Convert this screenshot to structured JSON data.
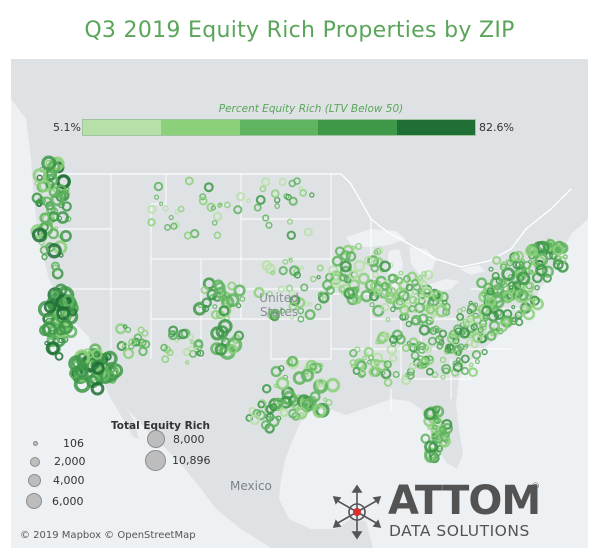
{
  "title": "Q3 2019 Equity Rich Properties by ZIP",
  "legend": {
    "title": "Percent Equity Rich (LTV Below 50)",
    "min_label": "5.1%",
    "max_label": "82.6%",
    "colors": [
      "#b7e0a8",
      "#8bd07a",
      "#5fb45f",
      "#3d9848",
      "#1f6f36"
    ]
  },
  "size_legend": {
    "title": "Total Equity Rich",
    "items": [
      {
        "label": "106",
        "value": 106
      },
      {
        "label": "2,000",
        "value": 2000
      },
      {
        "label": "4,000",
        "value": 4000
      },
      {
        "label": "6,000",
        "value": 6000
      },
      {
        "label": "8,000",
        "value": 8000
      },
      {
        "label": "10,896",
        "value": 10896
      }
    ]
  },
  "map_labels": {
    "states": "United States",
    "mexico": "Mexico"
  },
  "attribution": "© 2019 Mapbox © OpenStreetMap",
  "logo": {
    "wordmark": "ATTOM",
    "registered": "®",
    "subtitle": "DATA SOLUTIONS"
  },
  "colors": {
    "title": "#5aa55a",
    "water": "#eef1f3",
    "land": "#dfe2e4",
    "border": "#ffffff"
  }
}
